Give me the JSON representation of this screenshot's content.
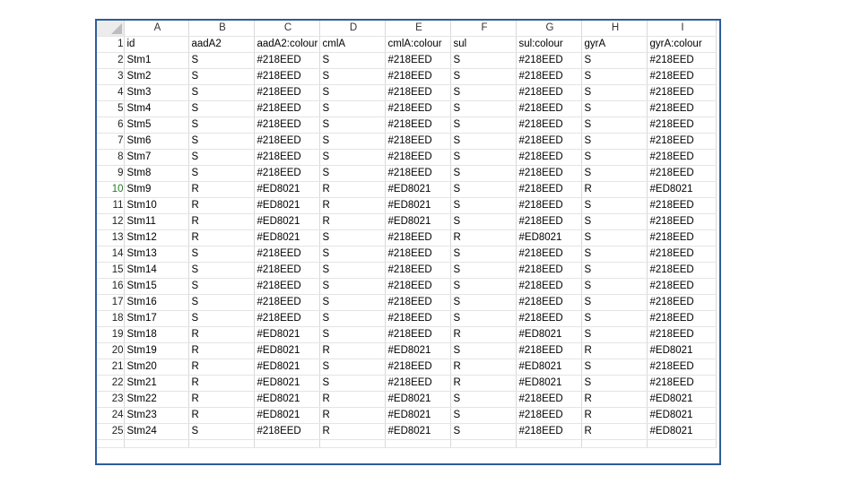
{
  "columns": [
    "A",
    "B",
    "C",
    "D",
    "E",
    "F",
    "G",
    "H",
    "I"
  ],
  "rows": [
    {
      "n": "1",
      "c": [
        "id",
        "aadA2",
        "aadA2:colour",
        "cmlA",
        "cmlA:colour",
        "sul",
        "sul:colour",
        "gyrA",
        "gyrA:colour"
      ]
    },
    {
      "n": "2",
      "c": [
        "Stm1",
        "S",
        "#218EED",
        "S",
        "#218EED",
        "S",
        "#218EED",
        "S",
        "#218EED"
      ]
    },
    {
      "n": "3",
      "c": [
        "Stm2",
        "S",
        "#218EED",
        "S",
        "#218EED",
        "S",
        "#218EED",
        "S",
        "#218EED"
      ]
    },
    {
      "n": "4",
      "c": [
        "Stm3",
        "S",
        "#218EED",
        "S",
        "#218EED",
        "S",
        "#218EED",
        "S",
        "#218EED"
      ]
    },
    {
      "n": "5",
      "c": [
        "Stm4",
        "S",
        "#218EED",
        "S",
        "#218EED",
        "S",
        "#218EED",
        "S",
        "#218EED"
      ]
    },
    {
      "n": "6",
      "c": [
        "Stm5",
        "S",
        "#218EED",
        "S",
        "#218EED",
        "S",
        "#218EED",
        "S",
        "#218EED"
      ]
    },
    {
      "n": "7",
      "c": [
        "Stm6",
        "S",
        "#218EED",
        "S",
        "#218EED",
        "S",
        "#218EED",
        "S",
        "#218EED"
      ]
    },
    {
      "n": "8",
      "c": [
        "Stm7",
        "S",
        "#218EED",
        "S",
        "#218EED",
        "S",
        "#218EED",
        "S",
        "#218EED"
      ]
    },
    {
      "n": "9",
      "c": [
        "Stm8",
        "S",
        "#218EED",
        "S",
        "#218EED",
        "S",
        "#218EED",
        "S",
        "#218EED"
      ]
    },
    {
      "n": "10",
      "c": [
        "Stm9",
        "R",
        "#ED8021",
        "R",
        "#ED8021",
        "S",
        "#218EED",
        "R",
        "#ED8021"
      ]
    },
    {
      "n": "11",
      "c": [
        "Stm10",
        "R",
        "#ED8021",
        "R",
        "#ED8021",
        "S",
        "#218EED",
        "S",
        "#218EED"
      ]
    },
    {
      "n": "12",
      "c": [
        "Stm11",
        "R",
        "#ED8021",
        "R",
        "#ED8021",
        "S",
        "#218EED",
        "S",
        "#218EED"
      ]
    },
    {
      "n": "13",
      "c": [
        "Stm12",
        "R",
        "#ED8021",
        "S",
        "#218EED",
        "R",
        "#ED8021",
        "S",
        "#218EED"
      ]
    },
    {
      "n": "14",
      "c": [
        "Stm13",
        "S",
        "#218EED",
        "S",
        "#218EED",
        "S",
        "#218EED",
        "S",
        "#218EED"
      ]
    },
    {
      "n": "15",
      "c": [
        "Stm14",
        "S",
        "#218EED",
        "S",
        "#218EED",
        "S",
        "#218EED",
        "S",
        "#218EED"
      ]
    },
    {
      "n": "16",
      "c": [
        "Stm15",
        "S",
        "#218EED",
        "S",
        "#218EED",
        "S",
        "#218EED",
        "S",
        "#218EED"
      ]
    },
    {
      "n": "17",
      "c": [
        "Stm16",
        "S",
        "#218EED",
        "S",
        "#218EED",
        "S",
        "#218EED",
        "S",
        "#218EED"
      ]
    },
    {
      "n": "18",
      "c": [
        "Stm17",
        "S",
        "#218EED",
        "S",
        "#218EED",
        "S",
        "#218EED",
        "S",
        "#218EED"
      ]
    },
    {
      "n": "19",
      "c": [
        "Stm18",
        "R",
        "#ED8021",
        "S",
        "#218EED",
        "R",
        "#ED8021",
        "S",
        "#218EED"
      ]
    },
    {
      "n": "20",
      "c": [
        "Stm19",
        "R",
        "#ED8021",
        "R",
        "#ED8021",
        "S",
        "#218EED",
        "R",
        "#ED8021"
      ]
    },
    {
      "n": "21",
      "c": [
        "Stm20",
        "R",
        "#ED8021",
        "S",
        "#218EED",
        "R",
        "#ED8021",
        "S",
        "#218EED"
      ]
    },
    {
      "n": "22",
      "c": [
        "Stm21",
        "R",
        "#ED8021",
        "S",
        "#218EED",
        "R",
        "#ED8021",
        "S",
        "#218EED"
      ]
    },
    {
      "n": "23",
      "c": [
        "Stm22",
        "R",
        "#ED8021",
        "R",
        "#ED8021",
        "S",
        "#218EED",
        "R",
        "#ED8021"
      ]
    },
    {
      "n": "24",
      "c": [
        "Stm23",
        "R",
        "#ED8021",
        "R",
        "#ED8021",
        "S",
        "#218EED",
        "R",
        "#ED8021"
      ]
    },
    {
      "n": "25",
      "c": [
        "Stm24",
        "S",
        "#218EED",
        "R",
        "#ED8021",
        "S",
        "#218EED",
        "R",
        "#ED8021"
      ]
    }
  ],
  "selected_row": "10",
  "frame_border_color": "#2e5d9a"
}
